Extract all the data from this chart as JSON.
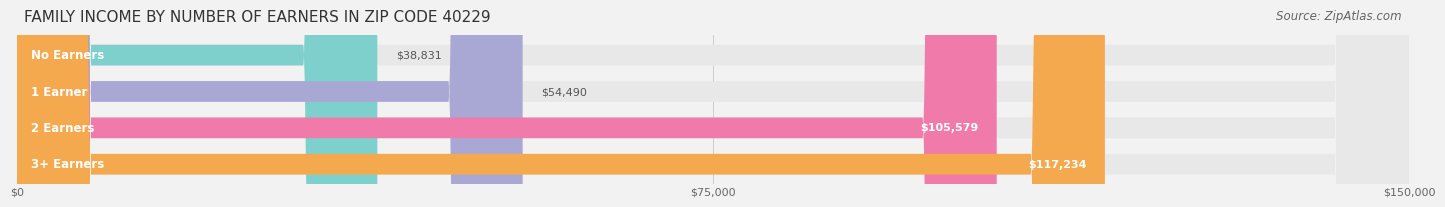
{
  "title": "FAMILY INCOME BY NUMBER OF EARNERS IN ZIP CODE 40229",
  "source": "Source: ZipAtlas.com",
  "categories": [
    "No Earners",
    "1 Earner",
    "2 Earners",
    "3+ Earners"
  ],
  "values": [
    38831,
    54490,
    105579,
    117234
  ],
  "bar_colors": [
    "#7dd0cc",
    "#a9a8d4",
    "#f07aaa",
    "#f5a94e"
  ],
  "bar_labels": [
    "$38,831",
    "$54,490",
    "$105,579",
    "$117,234"
  ],
  "label_colors": [
    "#555555",
    "#555555",
    "#ffffff",
    "#ffffff"
  ],
  "xlim": [
    0,
    150000
  ],
  "xticks": [
    0,
    75000,
    150000
  ],
  "xticklabels": [
    "$0",
    "$75,000",
    "$150,000"
  ],
  "background_color": "#f2f2f2",
  "bar_bg_color": "#e8e8e8",
  "title_fontsize": 11,
  "source_fontsize": 8.5,
  "bar_height": 0.55,
  "bar_gap": 0.15
}
